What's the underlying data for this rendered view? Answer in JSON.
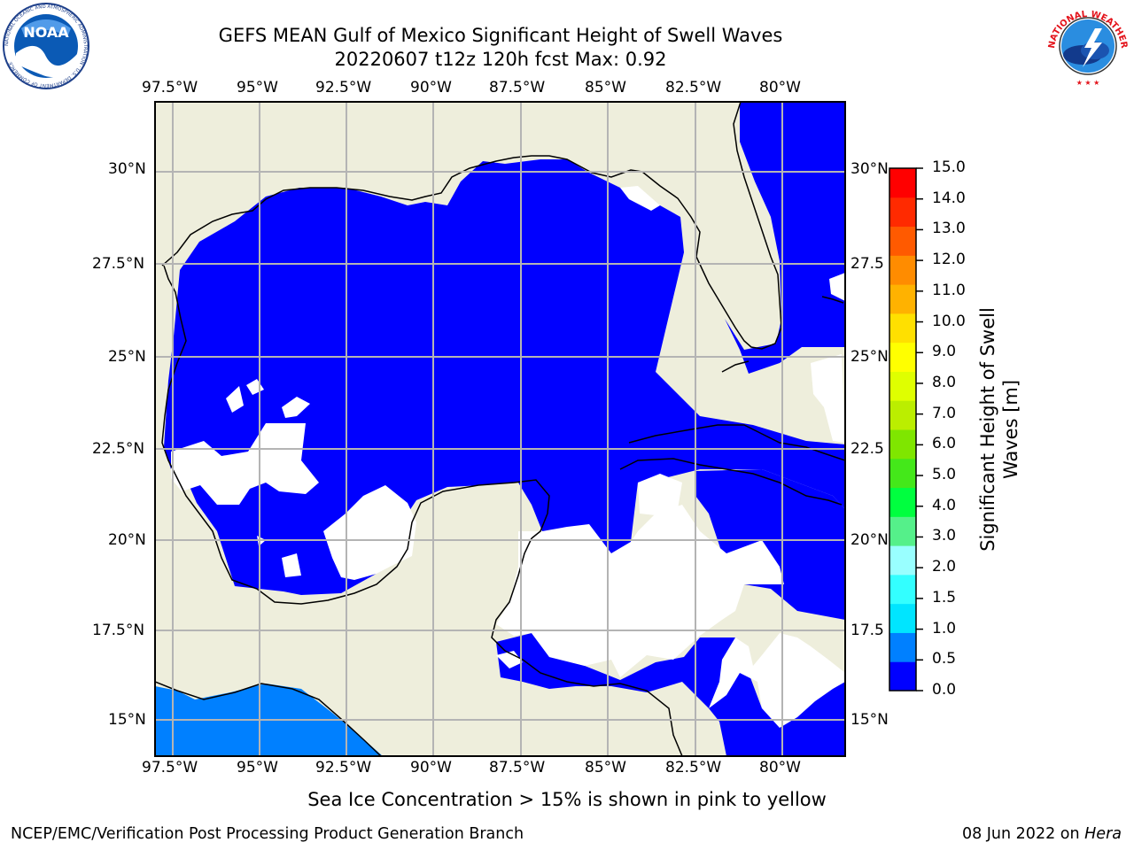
{
  "header": {
    "title_line1": "GEFS MEAN Gulf of Mexico Significant Height of Swell Waves",
    "title_line2": "20220607 t12z 120h fcst   Max: 0.92"
  },
  "logos": {
    "noaa_text": "NOAA",
    "noaa_ring": "NATIONAL OCEANIC AND ATMOSPHERIC ADMINISTRATION · U.S. DEPARTMENT OF COMMERCE",
    "nws_ring": "NATIONAL WEATHER SERVICE"
  },
  "map": {
    "lon_labels": [
      "97.5°W",
      "95°W",
      "92.5°W",
      "90°W",
      "87.5°W",
      "85°W",
      "82.5°W",
      "80°W"
    ],
    "lat_labels_left": [
      "30°N",
      "27.5°N",
      "25°N",
      "22.5°N",
      "20°N",
      "17.5°N",
      "15°N"
    ],
    "lat_labels_right": [
      "30°N",
      "27.5",
      "25°N",
      "22.5",
      "20°N",
      "17.5",
      "15°N"
    ],
    "colors": {
      "land": "#eeeedc",
      "ocean_low": "#0000ff",
      "ocean_mid": "#0080ff",
      "grid": "#b4b4b4"
    }
  },
  "colorbar": {
    "title_line1": "Significant Height of Swell",
    "title_line2": "Waves [m]",
    "labels": [
      "15.0",
      "14.0",
      "13.0",
      "12.0",
      "11.0",
      "10.0",
      "9.0",
      "8.0",
      "7.0",
      "6.0",
      "5.0",
      "4.0",
      "3.0",
      "2.0",
      "1.5",
      "1.0",
      "0.5",
      "0.0"
    ],
    "colors": [
      "#0000ff",
      "#0080ff",
      "#00e5ff",
      "#33ffff",
      "#99ffff",
      "#55f08a",
      "#00ff3f",
      "#44e81a",
      "#7fe600",
      "#bbee00",
      "#dfff00",
      "#ffff00",
      "#ffe000",
      "#ffb200",
      "#ff8c00",
      "#ff5a00",
      "#ff2a00",
      "#ff0000"
    ]
  },
  "footer": {
    "ice_note": "Sea Ice Concentration > 15% is shown in pink to yellow",
    "left": "NCEP/EMC/Verification Post Processing Product Generation Branch",
    "right_prefix": "08 Jun 2022 on ",
    "right_host": "Hera"
  }
}
